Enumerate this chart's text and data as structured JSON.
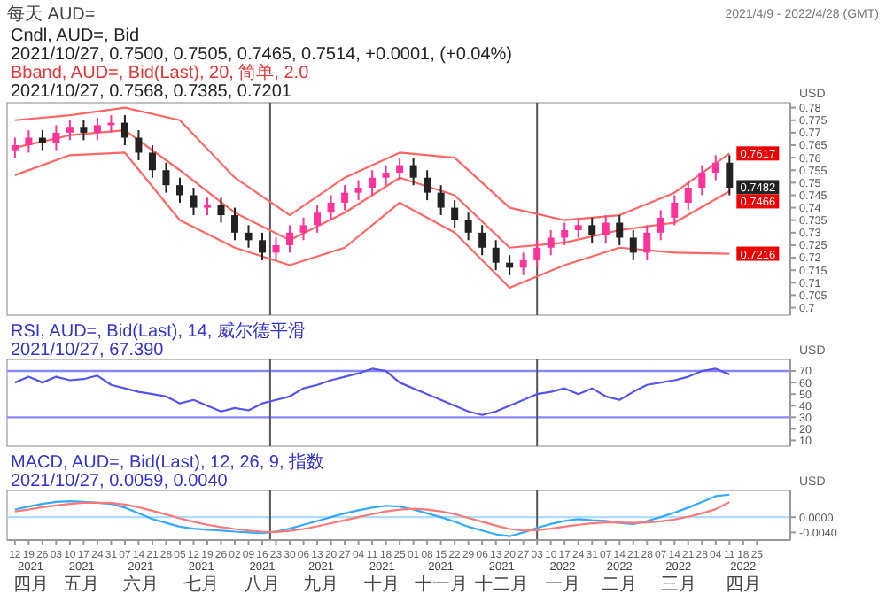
{
  "chart_data": [
    {
      "type": "candlestick",
      "title": "每天 AUD=",
      "subtitle": "2021/4/9 - 2022/4/28 (GMT)",
      "ylabel": "USD",
      "tick_labels": "y",
      "annotations": [
        "Cndl, AUD=, Bid",
        "2021/10/27, 0.7500, 0.7505, 0.7465, 0.7514, +0.0001, (+0.04%)",
        "Bband, AUD=, Bid(Last), 20, 简单, 2.0",
        "2021/10/27, 0.7568, 0.7385, 0.7201",
        {
          "text": "0.7617",
          "x": "2022-04-11",
          "y": 0.7617
        },
        {
          "text": "0.7482",
          "x": "2022-04-11",
          "y": 0.7482
        },
        {
          "text": "0.7466",
          "x": "2022-04-11",
          "y": 0.7466
        },
        {
          "text": "0.7216",
          "x": "2022-04-11",
          "y": 0.7216
        }
      ],
      "x": [
        "2021-04-12",
        "2021-04-19",
        "2021-04-26",
        "2021-05-03",
        "2021-05-10",
        "2021-05-17",
        "2021-05-24",
        "2021-05-31",
        "2021-06-07",
        "2021-06-14",
        "2021-06-21",
        "2021-06-28",
        "2021-07-05",
        "2021-07-12",
        "2021-07-19",
        "2021-07-26",
        "2021-08-02",
        "2021-08-09",
        "2021-08-16",
        "2021-08-23",
        "2021-08-30",
        "2021-09-06",
        "2021-09-13",
        "2021-09-20",
        "2021-09-27",
        "2021-10-04",
        "2021-10-11",
        "2021-10-18",
        "2021-10-25",
        "2021-11-01",
        "2021-11-08",
        "2021-11-15",
        "2021-11-22",
        "2021-11-29",
        "2021-12-06",
        "2021-12-13",
        "2021-12-20",
        "2021-12-27",
        "2022-01-03",
        "2022-01-10",
        "2022-01-17",
        "2022-01-24",
        "2022-01-31",
        "2022-02-07",
        "2022-02-14",
        "2022-02-21",
        "2022-02-28",
        "2022-03-07",
        "2022-03-14",
        "2022-03-21",
        "2022-03-28",
        "2022-04-04",
        "2022-04-11"
      ],
      "ohlc": [
        [
          0.763,
          0.768,
          0.76,
          0.765
        ],
        [
          0.765,
          0.771,
          0.762,
          0.768
        ],
        [
          0.768,
          0.771,
          0.763,
          0.766
        ],
        [
          0.766,
          0.773,
          0.763,
          0.77
        ],
        [
          0.77,
          0.775,
          0.767,
          0.772
        ],
        [
          0.772,
          0.775,
          0.767,
          0.77
        ],
        [
          0.77,
          0.776,
          0.767,
          0.773
        ],
        [
          0.773,
          0.777,
          0.77,
          0.774
        ],
        [
          0.774,
          0.777,
          0.765,
          0.768
        ],
        [
          0.768,
          0.771,
          0.759,
          0.762
        ],
        [
          0.762,
          0.765,
          0.752,
          0.755
        ],
        [
          0.755,
          0.758,
          0.746,
          0.749
        ],
        [
          0.749,
          0.752,
          0.742,
          0.745
        ],
        [
          0.745,
          0.748,
          0.737,
          0.74
        ],
        [
          0.74,
          0.744,
          0.737,
          0.741
        ],
        [
          0.741,
          0.744,
          0.734,
          0.737
        ],
        [
          0.737,
          0.74,
          0.727,
          0.73
        ],
        [
          0.73,
          0.733,
          0.724,
          0.727
        ],
        [
          0.727,
          0.73,
          0.719,
          0.722
        ],
        [
          0.722,
          0.728,
          0.719,
          0.725
        ],
        [
          0.725,
          0.733,
          0.722,
          0.73
        ],
        [
          0.73,
          0.736,
          0.727,
          0.733
        ],
        [
          0.733,
          0.741,
          0.73,
          0.738
        ],
        [
          0.738,
          0.745,
          0.735,
          0.742
        ],
        [
          0.742,
          0.749,
          0.739,
          0.746
        ],
        [
          0.746,
          0.751,
          0.743,
          0.748
        ],
        [
          0.748,
          0.755,
          0.745,
          0.752
        ],
        [
          0.752,
          0.757,
          0.749,
          0.754
        ],
        [
          0.754,
          0.76,
          0.751,
          0.757
        ],
        [
          0.757,
          0.76,
          0.749,
          0.752
        ],
        [
          0.752,
          0.755,
          0.743,
          0.746
        ],
        [
          0.746,
          0.749,
          0.737,
          0.74
        ],
        [
          0.74,
          0.743,
          0.732,
          0.735
        ],
        [
          0.735,
          0.738,
          0.727,
          0.73
        ],
        [
          0.73,
          0.733,
          0.721,
          0.724
        ],
        [
          0.724,
          0.727,
          0.715,
          0.718
        ],
        [
          0.718,
          0.721,
          0.713,
          0.716
        ],
        [
          0.716,
          0.722,
          0.713,
          0.719
        ],
        [
          0.719,
          0.727,
          0.716,
          0.724
        ],
        [
          0.724,
          0.731,
          0.721,
          0.728
        ],
        [
          0.728,
          0.734,
          0.725,
          0.731
        ],
        [
          0.731,
          0.736,
          0.728,
          0.733
        ],
        [
          0.733,
          0.736,
          0.726,
          0.729
        ],
        [
          0.729,
          0.737,
          0.726,
          0.734
        ],
        [
          0.734,
          0.737,
          0.725,
          0.728
        ],
        [
          0.728,
          0.731,
          0.719,
          0.722
        ],
        [
          0.722,
          0.733,
          0.719,
          0.73
        ],
        [
          0.73,
          0.739,
          0.727,
          0.736
        ],
        [
          0.736,
          0.745,
          0.733,
          0.742
        ],
        [
          0.742,
          0.751,
          0.739,
          0.748
        ],
        [
          0.748,
          0.757,
          0.745,
          0.754
        ],
        [
          0.754,
          0.761,
          0.751,
          0.758
        ],
        [
          0.758,
          0.761,
          0.745,
          0.748
        ]
      ],
      "colors": [
        "#ff3399",
        "#ff3399",
        "#222222",
        "#ff3399",
        "#ff3399",
        "#222222",
        "#ff3399",
        "#ff3399",
        "#222222",
        "#222222",
        "#222222",
        "#222222",
        "#222222",
        "#222222",
        "#ff3399",
        "#222222",
        "#222222",
        "#222222",
        "#222222",
        "#ff3399",
        "#ff3399",
        "#ff3399",
        "#ff3399",
        "#ff3399",
        "#ff3399",
        "#ff3399",
        "#ff3399",
        "#ff3399",
        "#ff3399",
        "#222222",
        "#222222",
        "#222222",
        "#222222",
        "#222222",
        "#222222",
        "#222222",
        "#222222",
        "#ff3399",
        "#ff3399",
        "#ff3399",
        "#ff3399",
        "#ff3399",
        "#222222",
        "#ff3399",
        "#222222",
        "#222222",
        "#ff3399",
        "#ff3399",
        "#ff3399",
        "#ff3399",
        "#ff3399",
        "#ff3399",
        "#222222"
      ],
      "series": [
        {
          "type": "line",
          "color": "#ff6666",
          "x": [
            "2021-04-12",
            "2021-05-10",
            "2021-06-07",
            "2021-07-05",
            "2021-08-02",
            "2021-08-30",
            "2021-09-27",
            "2021-10-25",
            "2021-11-22",
            "2021-12-20",
            "2022-01-17",
            "2022-02-14",
            "2022-03-14",
            "2022-04-11"
          ],
          "values": [
            0.775,
            0.777,
            0.78,
            0.775,
            0.752,
            0.737,
            0.752,
            0.762,
            0.76,
            0.74,
            0.735,
            0.737,
            0.746,
            0.7617
          ]
        },
        {
          "type": "line",
          "color": "#ff6666",
          "x": [
            "2021-04-12",
            "2021-05-10",
            "2021-06-07",
            "2021-07-05",
            "2021-08-02",
            "2021-08-30",
            "2021-09-27",
            "2021-10-25",
            "2021-11-22",
            "2021-12-20",
            "2022-01-17",
            "2022-02-14",
            "2022-03-14",
            "2022-04-11"
          ],
          "values": [
            0.764,
            0.769,
            0.771,
            0.755,
            0.738,
            0.727,
            0.738,
            0.752,
            0.745,
            0.724,
            0.726,
            0.731,
            0.734,
            0.7466
          ]
        },
        {
          "type": "line",
          "color": "#ff6666",
          "x": [
            "2021-04-12",
            "2021-05-10",
            "2021-06-07",
            "2021-07-05",
            "2021-08-02",
            "2021-08-30",
            "2021-09-27",
            "2021-10-25",
            "2021-11-22",
            "2021-12-20",
            "2022-01-17",
            "2022-02-14",
            "2022-03-14",
            "2022-04-11"
          ],
          "values": [
            0.753,
            0.761,
            0.762,
            0.735,
            0.724,
            0.717,
            0.724,
            0.742,
            0.73,
            0.708,
            0.717,
            0.724,
            0.722,
            0.7216
          ]
        }
      ],
      "xlim": [
        "2021-04-08",
        "2022-05-12"
      ],
      "ylim": [
        0.697,
        0.782
      ],
      "yticks": [
        0.7,
        0.705,
        0.71,
        0.715,
        0.72,
        0.725,
        0.73,
        0.735,
        0.74,
        0.745,
        0.75,
        0.755,
        0.76,
        0.765,
        0.77,
        0.775,
        0.78
      ],
      "ref_lines": [
        {
          "axis": "x",
          "value": "2021-08-20",
          "color": "#555555"
        },
        {
          "axis": "x",
          "value": "2022-01-03",
          "color": "#555555"
        }
      ]
    },
    {
      "type": "line",
      "ylabel": "USD",
      "tick_labels": "y",
      "annotations": [
        "RSI, AUD=, Bid(Last), 14, 威尔德平滑",
        "2021/10/27, 67.390"
      ],
      "x": [
        "2021-04-12",
        "2021-04-19",
        "2021-04-26",
        "2021-05-03",
        "2021-05-10",
        "2021-05-17",
        "2021-05-24",
        "2021-05-31",
        "2021-06-07",
        "2021-06-14",
        "2021-06-21",
        "2021-06-28",
        "2021-07-05",
        "2021-07-12",
        "2021-07-19",
        "2021-07-26",
        "2021-08-02",
        "2021-08-09",
        "2021-08-16",
        "2021-08-23",
        "2021-08-30",
        "2021-09-06",
        "2021-09-13",
        "2021-09-20",
        "2021-09-27",
        "2021-10-04",
        "2021-10-11",
        "2021-10-18",
        "2021-10-25",
        "2021-11-01",
        "2021-11-08",
        "2021-11-15",
        "2021-11-22",
        "2021-11-29",
        "2021-12-06",
        "2021-12-13",
        "2021-12-20",
        "2021-12-27",
        "2022-01-03",
        "2022-01-10",
        "2022-01-17",
        "2022-01-24",
        "2022-01-31",
        "2022-02-07",
        "2022-02-14",
        "2022-02-21",
        "2022-02-28",
        "2022-03-07",
        "2022-03-14",
        "2022-03-21",
        "2022-03-28",
        "2022-04-04",
        "2022-04-11"
      ],
      "series": [
        {
          "color": "#5555ee",
          "values": [
            60,
            65,
            60,
            65,
            62,
            63,
            66,
            58,
            55,
            52,
            50,
            48,
            42,
            45,
            40,
            35,
            38,
            36,
            42,
            45,
            48,
            55,
            58,
            62,
            65,
            68,
            72,
            70,
            60,
            55,
            50,
            45,
            40,
            35,
            32,
            35,
            40,
            45,
            50,
            52,
            55,
            50,
            55,
            48,
            45,
            52,
            58,
            60,
            62,
            65,
            70,
            72,
            67
          ]
        }
      ],
      "xlim": [
        "2021-04-08",
        "2022-05-12"
      ],
      "ylim": [
        5,
        80
      ],
      "yticks": [
        10,
        20,
        30,
        40,
        50,
        60,
        70
      ],
      "ref_lines": [
        {
          "axis": "y",
          "value": 70,
          "color": "#8888ff"
        },
        {
          "axis": "y",
          "value": 30,
          "color": "#8888ff"
        },
        {
          "axis": "x",
          "value": "2021-08-20",
          "color": "#555555"
        },
        {
          "axis": "x",
          "value": "2022-01-03",
          "color": "#555555"
        }
      ]
    },
    {
      "type": "line",
      "ylabel": "USD",
      "annotations": [
        "MACD, AUD=, Bid(Last), 12, 26, 9, 指数",
        "2021/10/27, 0.0059, 0.0040"
      ],
      "x": [
        "2021-04-12",
        "2021-04-19",
        "2021-04-26",
        "2021-05-03",
        "2021-05-10",
        "2021-05-17",
        "2021-05-24",
        "2021-05-31",
        "2021-06-07",
        "2021-06-14",
        "2021-06-21",
        "2021-06-28",
        "2021-07-05",
        "2021-07-12",
        "2021-07-19",
        "2021-07-26",
        "2021-08-02",
        "2021-08-09",
        "2021-08-16",
        "2021-08-23",
        "2021-08-30",
        "2021-09-06",
        "2021-09-13",
        "2021-09-20",
        "2021-09-27",
        "2021-10-04",
        "2021-10-11",
        "2021-10-18",
        "2021-10-25",
        "2021-11-01",
        "2021-11-08",
        "2021-11-15",
        "2021-11-22",
        "2021-11-29",
        "2021-12-06",
        "2021-12-13",
        "2021-12-20",
        "2021-12-27",
        "2022-01-03",
        "2022-01-10",
        "2022-01-17",
        "2022-01-24",
        "2022-01-31",
        "2022-02-07",
        "2022-02-14",
        "2022-02-21",
        "2022-02-28",
        "2022-03-07",
        "2022-03-14",
        "2022-03-21",
        "2022-03-28",
        "2022-04-04",
        "2022-04-11"
      ],
      "series": [
        {
          "color": "#33aaff",
          "values": [
            0.002,
            0.0028,
            0.0035,
            0.004,
            0.0042,
            0.004,
            0.0038,
            0.0035,
            0.0025,
            0.001,
            -0.0005,
            -0.0015,
            -0.0025,
            -0.003,
            -0.0033,
            -0.0035,
            -0.0038,
            -0.004,
            -0.0042,
            -0.0038,
            -0.003,
            -0.002,
            -0.001,
            0,
            0.001,
            0.0018,
            0.0025,
            0.003,
            0.0028,
            0.002,
            0.001,
            0,
            -0.0012,
            -0.0025,
            -0.0035,
            -0.0045,
            -0.005,
            -0.004,
            -0.0028,
            -0.0018,
            -0.001,
            -0.0005,
            -0.0008,
            -0.001,
            -0.0015,
            -0.0018,
            -0.001,
            0,
            0.0012,
            0.0025,
            0.004,
            0.0055,
            0.0059
          ]
        },
        {
          "color": "#ff7777",
          "values": [
            0.0015,
            0.002,
            0.0026,
            0.0031,
            0.0035,
            0.0038,
            0.0038,
            0.0037,
            0.0033,
            0.0026,
            0.0017,
            0.0007,
            -0.0003,
            -0.0012,
            -0.002,
            -0.0026,
            -0.0031,
            -0.0035,
            -0.0038,
            -0.0039,
            -0.0036,
            -0.0031,
            -0.0024,
            -0.0016,
            -0.0008,
            0,
            0.0008,
            0.0015,
            0.002,
            0.0022,
            0.002,
            0.0015,
            0.0008,
            -0.0002,
            -0.0012,
            -0.0022,
            -0.0031,
            -0.0035,
            -0.0034,
            -0.003,
            -0.0025,
            -0.002,
            -0.0016,
            -0.0014,
            -0.0014,
            -0.0015,
            -0.0014,
            -0.0011,
            -0.0006,
            0.0001,
            0.001,
            0.0021,
            0.004
          ]
        }
      ],
      "xlim": [
        "2021-04-08",
        "2022-05-12"
      ],
      "ylim": [
        -0.006,
        0.007
      ],
      "yticks": [
        {
          "value": 0,
          "label": "0.0000"
        },
        {
          "value": -0.004,
          "label": "-0.0040"
        }
      ],
      "xticks": [
        {
          "value": "2021-04-12",
          "label": "12"
        },
        {
          "value": "2021-04-19",
          "label": "19"
        },
        {
          "value": "2021-04-26",
          "label": "26"
        },
        {
          "value": "2021-05-03",
          "label": "03"
        },
        {
          "value": "2021-05-10",
          "label": "10"
        },
        {
          "value": "2021-05-17",
          "label": "17"
        },
        {
          "value": "2021-05-24",
          "label": "24"
        },
        {
          "value": "2021-05-31",
          "label": "31"
        },
        {
          "value": "2021-06-07",
          "label": "07"
        },
        {
          "value": "2021-06-14",
          "label": "14"
        },
        {
          "value": "2021-06-21",
          "label": "21"
        },
        {
          "value": "2021-06-28",
          "label": "28"
        },
        {
          "value": "2021-07-05",
          "label": "05"
        },
        {
          "value": "2021-07-12",
          "label": "12"
        },
        {
          "value": "2021-07-19",
          "label": "19"
        },
        {
          "value": "2021-07-26",
          "label": "26"
        },
        {
          "value": "2021-08-02",
          "label": "02"
        },
        {
          "value": "2021-08-09",
          "label": "09"
        },
        {
          "value": "2021-08-16",
          "label": "16"
        },
        {
          "value": "2021-08-23",
          "label": "23"
        },
        {
          "value": "2021-08-30",
          "label": "30"
        },
        {
          "value": "2021-09-06",
          "label": "06"
        },
        {
          "value": "2021-09-13",
          "label": "13"
        },
        {
          "value": "2021-09-20",
          "label": "20"
        },
        {
          "value": "2021-09-27",
          "label": "27"
        },
        {
          "value": "2021-10-04",
          "label": "04"
        },
        {
          "value": "2021-10-11",
          "label": "11"
        },
        {
          "value": "2021-10-18",
          "label": "18"
        },
        {
          "value": "2021-10-25",
          "label": "25"
        },
        {
          "value": "2021-11-01",
          "label": "01"
        },
        {
          "value": "2021-11-08",
          "label": "08"
        },
        {
          "value": "2021-11-15",
          "label": "15"
        },
        {
          "value": "2021-11-22",
          "label": "22"
        },
        {
          "value": "2021-11-29",
          "label": "29"
        },
        {
          "value": "2021-12-06",
          "label": "06"
        },
        {
          "value": "2021-12-13",
          "label": "13"
        },
        {
          "value": "2021-12-20",
          "label": "20"
        },
        {
          "value": "2021-12-27",
          "label": "27"
        },
        {
          "value": "2022-01-03",
          "label": "03"
        },
        {
          "value": "2022-01-10",
          "label": "10"
        },
        {
          "value": "2022-01-17",
          "label": "17"
        },
        {
          "value": "2022-01-24",
          "label": "24"
        },
        {
          "value": "2022-01-31",
          "label": "31"
        },
        {
          "value": "2022-02-07",
          "label": "07"
        },
        {
          "value": "2022-02-14",
          "label": "14"
        },
        {
          "value": "2022-02-21",
          "label": "21"
        },
        {
          "value": "2022-02-28",
          "label": "28"
        },
        {
          "value": "2022-03-07",
          "label": "07"
        },
        {
          "value": "2022-03-14",
          "label": "14"
        },
        {
          "value": "2022-03-21",
          "label": "21"
        },
        {
          "value": "2022-03-28",
          "label": "28"
        },
        {
          "value": "2022-04-04",
          "label": "04"
        },
        {
          "value": "2022-04-11",
          "label": "11"
        },
        {
          "value": "2022-04-18",
          "label": "18"
        },
        {
          "value": "2022-04-25",
          "label": "25"
        }
      ],
      "x2lim": [
        "2021-04-08",
        "2022-05-12"
      ],
      "x2ticks": [
        {
          "value": "2021-04-20",
          "label": "2021\n四月"
        },
        {
          "value": "2021-05-16",
          "label": "2021\n五月"
        },
        {
          "value": "2021-06-15",
          "label": "2021\n六月"
        },
        {
          "value": "2021-07-16",
          "label": "2021\n七月"
        },
        {
          "value": "2021-08-16",
          "label": "2021\n八月"
        },
        {
          "value": "2021-09-15",
          "label": "2021\n九月"
        },
        {
          "value": "2021-10-16",
          "label": "2021\n十月"
        },
        {
          "value": "2021-11-15",
          "label": "2021\n十一月"
        },
        {
          "value": "2021-12-16",
          "label": "2021\n十二月"
        },
        {
          "value": "2022-01-16",
          "label": "2022\n一月"
        },
        {
          "value": "2022-02-14",
          "label": "2022\n二月"
        },
        {
          "value": "2022-03-16",
          "label": "2022\n三月"
        },
        {
          "value": "2022-04-18",
          "label": "2022\n四月"
        }
      ],
      "ref_lines": [
        {
          "axis": "y",
          "value": 0,
          "color": "#aaddff"
        },
        {
          "axis": "x",
          "value": "2021-08-20",
          "color": "#555555"
        },
        {
          "axis": "x",
          "value": "2022-01-03",
          "color": "#555555"
        }
      ]
    }
  ]
}
